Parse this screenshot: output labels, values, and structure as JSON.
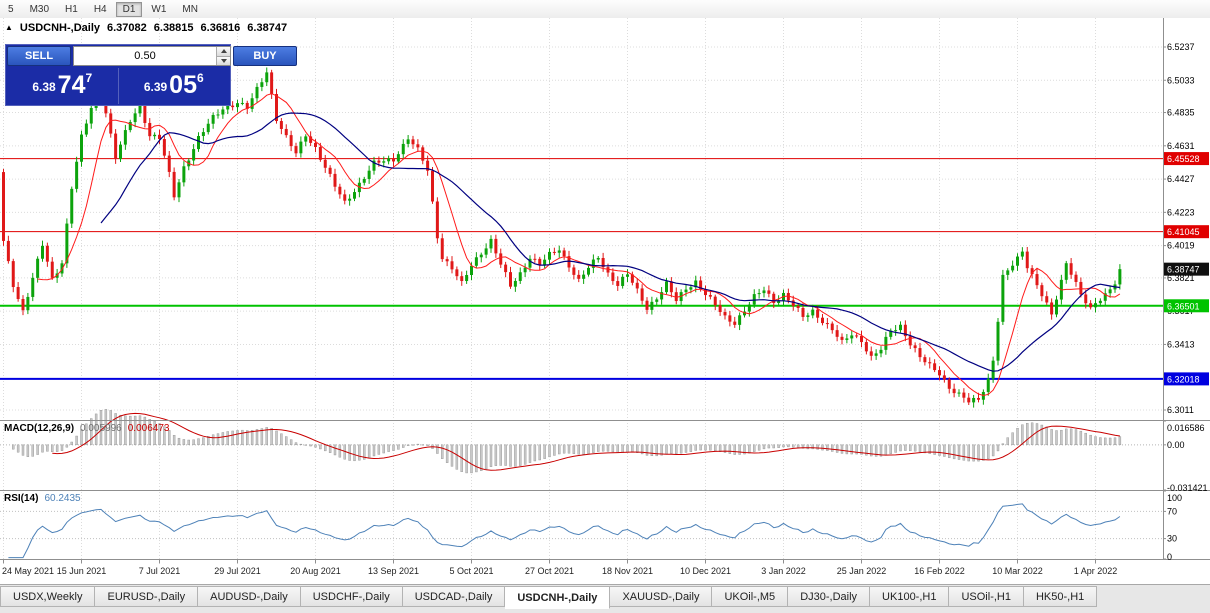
{
  "toolbar": {
    "timeframes": [
      "5",
      "M30",
      "H1",
      "H4",
      "D1",
      "W1",
      "MN"
    ],
    "active_timeframe": "D1"
  },
  "header": {
    "collapse_icon": "▲",
    "symbol": "USDCNH-,Daily",
    "open": "6.37082",
    "high": "6.38815",
    "low": "6.36816",
    "close": "6.38747"
  },
  "trade_panel": {
    "sell_label": "SELL",
    "buy_label": "BUY",
    "volume": "0.50",
    "sell_price_prefix": "6.38",
    "sell_price_big": "74",
    "sell_price_sup": "7",
    "buy_price_prefix": "6.39",
    "buy_price_big": "05",
    "buy_price_sup": "6"
  },
  "indicators": {
    "macd": {
      "title": "MACD(12,26,9)",
      "main_value": "0.005996",
      "signal_value": "0.006473"
    },
    "rsi": {
      "title": "RSI(14)",
      "value": "60.2435"
    }
  },
  "colors": {
    "panel_bg": "#1b2ca6",
    "button_top": "#4d7de2",
    "button_bot": "#2a55bd",
    "candle_up": "#0ca30c",
    "candle_down": "#e01818",
    "ma_fast": "#ff1a1a",
    "ma_slow": "#000080",
    "bid_label_bg": "#101010",
    "macd_bar": "#c9c9c9",
    "macd_bar_border": "#8f8f8f",
    "macd_signal": "#c80000",
    "rsi_line": "#4e82b8",
    "grid": "#dcdcdc",
    "separator": "#8f8f8f"
  },
  "chart_data": {
    "type": "candlestick",
    "symbol": "USDCNH",
    "timeframe": "Daily",
    "candles_count": 230,
    "first_open": 6.447,
    "last_close": 6.38747,
    "close_anchors": [
      [
        0,
        6.404
      ],
      [
        2,
        6.378
      ],
      [
        4,
        6.362
      ],
      [
        6,
        6.382
      ],
      [
        8,
        6.402
      ],
      [
        10,
        6.381
      ],
      [
        12,
        6.392
      ],
      [
        14,
        6.438
      ],
      [
        16,
        6.468
      ],
      [
        18,
        6.486
      ],
      [
        20,
        6.498
      ],
      [
        22,
        6.47
      ],
      [
        23,
        6.456
      ],
      [
        26,
        6.478
      ],
      [
        28,
        6.488
      ],
      [
        30,
        6.47
      ],
      [
        32,
        6.468
      ],
      [
        34,
        6.445
      ],
      [
        35,
        6.432
      ],
      [
        37,
        6.45
      ],
      [
        40,
        6.468
      ],
      [
        43,
        6.48
      ],
      [
        45,
        6.486
      ],
      [
        48,
        6.49
      ],
      [
        50,
        6.486
      ],
      [
        53,
        6.503
      ],
      [
        54,
        6.509
      ],
      [
        56,
        6.48
      ],
      [
        58,
        6.468
      ],
      [
        60,
        6.458
      ],
      [
        62,
        6.47
      ],
      [
        64,
        6.462
      ],
      [
        66,
        6.45
      ],
      [
        68,
        6.438
      ],
      [
        70,
        6.428
      ],
      [
        73,
        6.44
      ],
      [
        76,
        6.452
      ],
      [
        80,
        6.455
      ],
      [
        83,
        6.468
      ],
      [
        85,
        6.46
      ],
      [
        87,
        6.448
      ],
      [
        88,
        6.428
      ],
      [
        89,
        6.408
      ],
      [
        90,
        6.395
      ],
      [
        92,
        6.388
      ],
      [
        94,
        6.378
      ],
      [
        96,
        6.39
      ],
      [
        98,
        6.398
      ],
      [
        100,
        6.405
      ],
      [
        102,
        6.39
      ],
      [
        104,
        6.377
      ],
      [
        106,
        6.385
      ],
      [
        108,
        6.395
      ],
      [
        110,
        6.39
      ],
      [
        112,
        6.396
      ],
      [
        114,
        6.4
      ],
      [
        116,
        6.39
      ],
      [
        118,
        6.38
      ],
      [
        120,
        6.388
      ],
      [
        122,
        6.395
      ],
      [
        124,
        6.385
      ],
      [
        126,
        6.378
      ],
      [
        128,
        6.384
      ],
      [
        130,
        6.374
      ],
      [
        132,
        6.364
      ],
      [
        134,
        6.37
      ],
      [
        136,
        6.378
      ],
      [
        138,
        6.368
      ],
      [
        140,
        6.376
      ],
      [
        142,
        6.38
      ],
      [
        144,
        6.372
      ],
      [
        146,
        6.365
      ],
      [
        148,
        6.358
      ],
      [
        150,
        6.355
      ],
      [
        152,
        6.362
      ],
      [
        154,
        6.37
      ],
      [
        156,
        6.375
      ],
      [
        158,
        6.368
      ],
      [
        160,
        6.372
      ],
      [
        162,
        6.365
      ],
      [
        164,
        6.358
      ],
      [
        166,
        6.362
      ],
      [
        168,
        6.356
      ],
      [
        170,
        6.35
      ],
      [
        172,
        6.342
      ],
      [
        174,
        6.348
      ],
      [
        176,
        6.344
      ],
      [
        178,
        6.333
      ],
      [
        180,
        6.338
      ],
      [
        182,
        6.35
      ],
      [
        184,
        6.353
      ],
      [
        186,
        6.342
      ],
      [
        188,
        6.333
      ],
      [
        190,
        6.328
      ],
      [
        192,
        6.324
      ],
      [
        194,
        6.315
      ],
      [
        196,
        6.31
      ],
      [
        198,
        6.306
      ],
      [
        200,
        6.308
      ],
      [
        201,
        6.314
      ],
      [
        202,
        6.32
      ],
      [
        203,
        6.332
      ],
      [
        204,
        6.356
      ],
      [
        205,
        6.382
      ],
      [
        207,
        6.39
      ],
      [
        208,
        6.394
      ],
      [
        209,
        6.399
      ],
      [
        210,
        6.39
      ],
      [
        212,
        6.378
      ],
      [
        214,
        6.365
      ],
      [
        215,
        6.359
      ],
      [
        217,
        6.38
      ],
      [
        218,
        6.392
      ],
      [
        219,
        6.386
      ],
      [
        221,
        6.372
      ],
      [
        223,
        6.362
      ],
      [
        224,
        6.366
      ],
      [
        226,
        6.372
      ],
      [
        228,
        6.38
      ],
      [
        229,
        6.38747
      ]
    ],
    "price_axis_labels": [
      "6.5237",
      "6.5033",
      "6.4835",
      "6.4631",
      "6.4427",
      "6.4223",
      "6.4019",
      "6.3821",
      "6.3617",
      "6.3413",
      "6.3011"
    ],
    "hlines": [
      {
        "price": 6.45528,
        "label": "6.45528",
        "color": "#e00000",
        "width": 1
      },
      {
        "price": 6.41045,
        "label": "6.41045",
        "color": "#e00000",
        "width": 1
      },
      {
        "price": 6.36501,
        "label": "6.36501",
        "color": "#00c300",
        "width": 2
      },
      {
        "price": 6.32018,
        "label": "6.32018",
        "color": "#0000e0",
        "width": 2
      }
    ],
    "bid_label": {
      "price": 6.38747,
      "label": "6.38747",
      "bg": "#101010",
      "fg": "#ffffff"
    },
    "macd_axis": {
      "max": 0.016586,
      "min": -0.031421,
      "labels": [
        [
          0.016586,
          "0.016586"
        ],
        [
          0,
          "0.00"
        ],
        [
          -0.031421,
          "-0.031421"
        ]
      ]
    },
    "rsi_axis": {
      "labels": [
        [
          100,
          "100"
        ],
        [
          70,
          "70"
        ],
        [
          30,
          "30"
        ],
        [
          0,
          "0"
        ]
      ],
      "levels": [
        70,
        30
      ]
    },
    "date_labels": [
      "24 May 2021",
      "15 Jun 2021",
      "7 Jul 2021",
      "29 Jul 2021",
      "20 Aug 2021",
      "13 Sep 2021",
      "5 Oct 2021",
      "27 Oct 2021",
      "18 Nov 2021",
      "10 Dec 2021",
      "3 Jan 2022",
      "25 Jan 2022",
      "16 Feb 2022",
      "10 Mar 2022",
      "1 Apr 2022"
    ],
    "tick_every": 16
  },
  "tabs": {
    "items": [
      "USDX,Weekly",
      "EURUSD-,Daily",
      "AUDUSD-,Daily",
      "USDCHF-,Daily",
      "USDCAD-,Daily",
      "USDCNH-,Daily",
      "XAUUSD-,Daily",
      "UKOil-,M5",
      "DJ30-,Daily",
      "UK100-,H1",
      "USOil-,H1",
      "HK50-,H1"
    ],
    "active": "USDCNH-,Daily"
  }
}
